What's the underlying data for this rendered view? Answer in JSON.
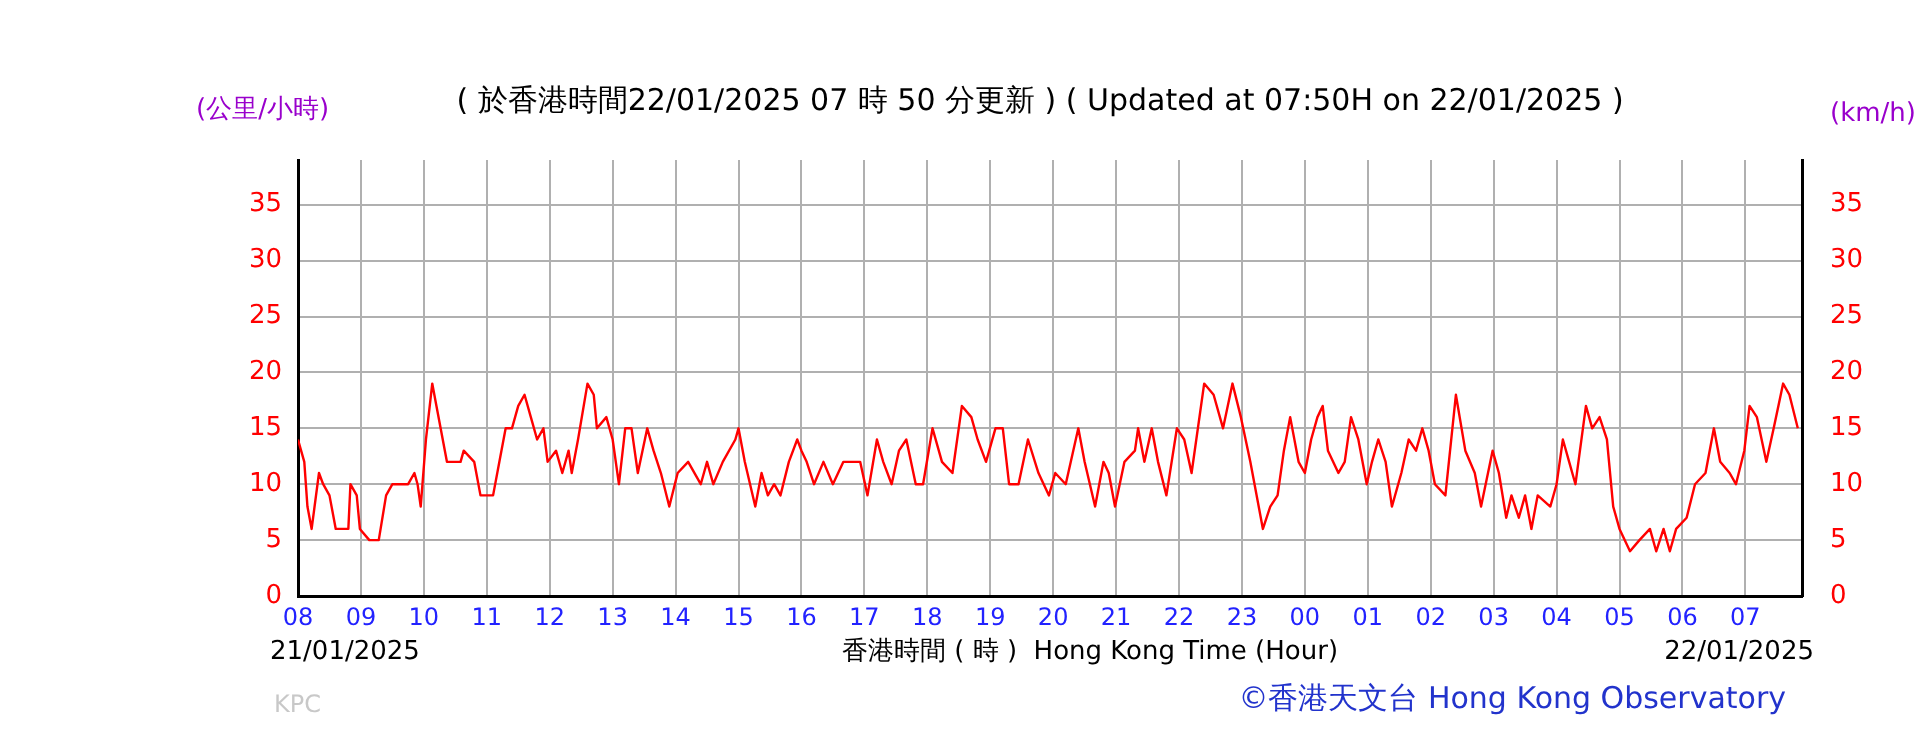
{
  "chart_data": {
    "type": "line",
    "title": "( 於香港時間22/01/2025 07 時 50 分更新 ) ( Updated at 07:50H on 22/01/2025 )",
    "xlabel": "香港時間 ( 時 )  Hong Kong Time (Hour)",
    "ylabel": "(公里/小時)",
    "y2label": "(km/h)",
    "annotations": [
      "21/01/2025",
      "22/01/2025",
      "KPC",
      "©香港天文台 Hong Kong Observatory"
    ],
    "series": [
      {
        "color": "#ff0000",
        "x": [
          "2025-01-21T08:00",
          "2025-01-21T08:06",
          "2025-01-21T08:09",
          "2025-01-21T08:13",
          "2025-01-21T08:20",
          "2025-01-21T08:24",
          "2025-01-21T08:30",
          "2025-01-21T08:36",
          "2025-01-21T08:48",
          "2025-01-21T08:50",
          "2025-01-21T08:56",
          "2025-01-21T08:59",
          "2025-01-21T09:08",
          "2025-01-21T09:17",
          "2025-01-21T09:24",
          "2025-01-21T09:30",
          "2025-01-21T09:45",
          "2025-01-21T09:51",
          "2025-01-21T09:54",
          "2025-01-21T09:57",
          "2025-01-21T10:02",
          "2025-01-21T10:08",
          "2025-01-21T10:12",
          "2025-01-21T10:22",
          "2025-01-21T10:35",
          "2025-01-21T10:38",
          "2025-01-21T10:48",
          "2025-01-21T10:54",
          "2025-01-21T11:06",
          "2025-01-21T11:12",
          "2025-01-21T11:18",
          "2025-01-21T11:24",
          "2025-01-21T11:30",
          "2025-01-21T11:36",
          "2025-01-21T11:42",
          "2025-01-21T11:48",
          "2025-01-21T11:54",
          "2025-01-21T11:58",
          "2025-01-21T12:06",
          "2025-01-21T12:12",
          "2025-01-21T12:18",
          "2025-01-21T12:21",
          "2025-01-21T12:27",
          "2025-01-21T12:36",
          "2025-01-21T12:42",
          "2025-01-21T12:45",
          "2025-01-21T12:54",
          "2025-01-21T13:00",
          "2025-01-21T13:06",
          "2025-01-21T13:12",
          "2025-01-21T13:18",
          "2025-01-21T13:24",
          "2025-01-21T13:33",
          "2025-01-21T13:39",
          "2025-01-21T13:46",
          "2025-01-21T13:54",
          "2025-01-21T14:02",
          "2025-01-21T14:12",
          "2025-01-21T14:24",
          "2025-01-21T14:30",
          "2025-01-21T14:36",
          "2025-01-21T14:45",
          "2025-01-21T14:57",
          "2025-01-21T15:00",
          "2025-01-21T15:06",
          "2025-01-21T15:16",
          "2025-01-21T15:22",
          "2025-01-21T15:28",
          "2025-01-21T15:34",
          "2025-01-21T15:40",
          "2025-01-21T15:48",
          "2025-01-21T15:56",
          "2025-01-21T16:00",
          "2025-01-21T16:05",
          "2025-01-21T16:12",
          "2025-01-21T16:21",
          "2025-01-21T16:30",
          "2025-01-21T16:40",
          "2025-01-21T16:56",
          "2025-01-21T17:03",
          "2025-01-21T17:12",
          "2025-01-21T17:18",
          "2025-01-21T17:26",
          "2025-01-21T17:33",
          "2025-01-21T17:40",
          "2025-01-21T17:49",
          "2025-01-21T17:56",
          "2025-01-21T18:05",
          "2025-01-21T18:14",
          "2025-01-21T18:24",
          "2025-01-21T18:33",
          "2025-01-21T18:42",
          "2025-01-21T18:48",
          "2025-01-21T18:56",
          "2025-01-21T19:05",
          "2025-01-21T19:12",
          "2025-01-21T19:18",
          "2025-01-21T19:27",
          "2025-01-21T19:36",
          "2025-01-21T19:46",
          "2025-01-21T19:56",
          "2025-01-21T20:02",
          "2025-01-21T20:12",
          "2025-01-21T20:24",
          "2025-01-21T20:30",
          "2025-01-21T20:40",
          "2025-01-21T20:48",
          "2025-01-21T20:53",
          "2025-01-21T20:59",
          "2025-01-21T21:08",
          "2025-01-21T21:18",
          "2025-01-21T21:21",
          "2025-01-21T21:27",
          "2025-01-21T21:34",
          "2025-01-21T21:40",
          "2025-01-21T21:48",
          "2025-01-21T21:58",
          "2025-01-21T22:05",
          "2025-01-21T22:12",
          "2025-01-21T22:24",
          "2025-01-21T22:33",
          "2025-01-21T22:42",
          "2025-01-21T22:51",
          "2025-01-21T22:59",
          "2025-01-21T23:08",
          "2025-01-21T23:20",
          "2025-01-21T23:27",
          "2025-01-21T23:34",
          "2025-01-21T23:40",
          "2025-01-21T23:46",
          "2025-01-21T23:54",
          "2025-01-22T00:00",
          "2025-01-22T00:06",
          "2025-01-22T00:12",
          "2025-01-22T00:17",
          "2025-01-22T00:22",
          "2025-01-22T00:32",
          "2025-01-22T00:38",
          "2025-01-22T00:44",
          "2025-01-22T00:51",
          "2025-01-22T00:59",
          "2025-01-22T01:04",
          "2025-01-22T01:10",
          "2025-01-22T01:17",
          "2025-01-22T01:23",
          "2025-01-22T01:32",
          "2025-01-22T01:39",
          "2025-01-22T01:46",
          "2025-01-22T01:52",
          "2025-01-22T01:58",
          "2025-01-22T02:04",
          "2025-01-22T02:14",
          "2025-01-22T02:24",
          "2025-01-22T02:33",
          "2025-01-22T02:42",
          "2025-01-22T02:48",
          "2025-01-22T02:59",
          "2025-01-22T03:05",
          "2025-01-22T03:12",
          "2025-01-22T03:17",
          "2025-01-22T03:24",
          "2025-01-22T03:30",
          "2025-01-22T03:36",
          "2025-01-22T03:42",
          "2025-01-22T03:54",
          "2025-01-22T04:00",
          "2025-01-22T04:06",
          "2025-01-22T04:12",
          "2025-01-22T04:18",
          "2025-01-22T04:28",
          "2025-01-22T04:34",
          "2025-01-22T04:41",
          "2025-01-22T04:48",
          "2025-01-22T04:54",
          "2025-01-22T05:00",
          "2025-01-22T05:10",
          "2025-01-22T05:19",
          "2025-01-22T05:29",
          "2025-01-22T05:35",
          "2025-01-22T05:42",
          "2025-01-22T05:48",
          "2025-01-22T05:54",
          "2025-01-22T06:04",
          "2025-01-22T06:12",
          "2025-01-22T06:22",
          "2025-01-22T06:30",
          "2025-01-22T06:36",
          "2025-01-22T06:45",
          "2025-01-22T06:51",
          "2025-01-22T06:59",
          "2025-01-22T07:04",
          "2025-01-22T07:11",
          "2025-01-22T07:20",
          "2025-01-22T07:27",
          "2025-01-22T07:36",
          "2025-01-22T07:42",
          "2025-01-22T07:50"
        ],
        "values": [
          14,
          12,
          8,
          6,
          11,
          10,
          9,
          6,
          6,
          10,
          9,
          6,
          5,
          5,
          9,
          10,
          10,
          11,
          10,
          8,
          14,
          19,
          17,
          12,
          12,
          13,
          12,
          9,
          9,
          12,
          15,
          15,
          17,
          18,
          16,
          14,
          15,
          12,
          13,
          11,
          13,
          11,
          14,
          19,
          18,
          15,
          16,
          14,
          10,
          15,
          15,
          11,
          15,
          13,
          11,
          8,
          11,
          12,
          10,
          12,
          10,
          12,
          14,
          15,
          12,
          8,
          11,
          9,
          10,
          9,
          12,
          14,
          13,
          12,
          10,
          12,
          10,
          12,
          12,
          9,
          14,
          12,
          10,
          13,
          14,
          10,
          10,
          15,
          12,
          11,
          17,
          16,
          14,
          12,
          15,
          15,
          10,
          10,
          14,
          11,
          9,
          11,
          10,
          15,
          12,
          8,
          12,
          11,
          8,
          12,
          13,
          15,
          12,
          15,
          12,
          9,
          15,
          14,
          11,
          19,
          18,
          15,
          19,
          16,
          12,
          6,
          8,
          9,
          13,
          16,
          12,
          11,
          14,
          16,
          17,
          13,
          11,
          12,
          16,
          14,
          10,
          12,
          14,
          12,
          8,
          11,
          14,
          13,
          15,
          13,
          10,
          9,
          18,
          13,
          11,
          8,
          13,
          11,
          7,
          9,
          7,
          9,
          6,
          9,
          8,
          10,
          14,
          12,
          10,
          17,
          15,
          16,
          14,
          8,
          6,
          4,
          5,
          6,
          4,
          6,
          4,
          6,
          7,
          10,
          11,
          15,
          12,
          11,
          10,
          13,
          17,
          16,
          12,
          15,
          19,
          18,
          15
        ]
      }
    ],
    "xlim": [
      "2025-01-21T08:00",
      "2025-01-22T07:54"
    ],
    "xticks": [
      {
        "value": "2025-01-21T08:00",
        "label": "08"
      },
      {
        "value": "2025-01-21T09:00",
        "label": "09"
      },
      {
        "value": "2025-01-21T10:00",
        "label": "10"
      },
      {
        "value": "2025-01-21T11:00",
        "label": "11"
      },
      {
        "value": "2025-01-21T12:00",
        "label": "12"
      },
      {
        "value": "2025-01-21T13:00",
        "label": "13"
      },
      {
        "value": "2025-01-21T14:00",
        "label": "14"
      },
      {
        "value": "2025-01-21T15:00",
        "label": "15"
      },
      {
        "value": "2025-01-21T16:00",
        "label": "16"
      },
      {
        "value": "2025-01-21T17:00",
        "label": "17"
      },
      {
        "value": "2025-01-21T18:00",
        "label": "18"
      },
      {
        "value": "2025-01-21T19:00",
        "label": "19"
      },
      {
        "value": "2025-01-21T20:00",
        "label": "20"
      },
      {
        "value": "2025-01-21T21:00",
        "label": "21"
      },
      {
        "value": "2025-01-21T22:00",
        "label": "22"
      },
      {
        "value": "2025-01-21T23:00",
        "label": "23"
      },
      {
        "value": "2025-01-22T00:00",
        "label": "00"
      },
      {
        "value": "2025-01-22T01:00",
        "label": "01"
      },
      {
        "value": "2025-01-22T02:00",
        "label": "02"
      },
      {
        "value": "2025-01-22T03:00",
        "label": "03"
      },
      {
        "value": "2025-01-22T04:00",
        "label": "04"
      },
      {
        "value": "2025-01-22T05:00",
        "label": "05"
      },
      {
        "value": "2025-01-22T06:00",
        "label": "06"
      },
      {
        "value": "2025-01-22T07:00",
        "label": "07"
      }
    ],
    "ylim": [
      0,
      39
    ],
    "yticks": [
      0,
      5,
      10,
      15,
      20,
      25,
      30,
      35
    ],
    "y2lim": [
      0,
      39
    ],
    "y2ticks": [
      0,
      5,
      10,
      15,
      20,
      25,
      30,
      35
    ],
    "grid": true,
    "marker": "none",
    "line_style": "solid"
  }
}
